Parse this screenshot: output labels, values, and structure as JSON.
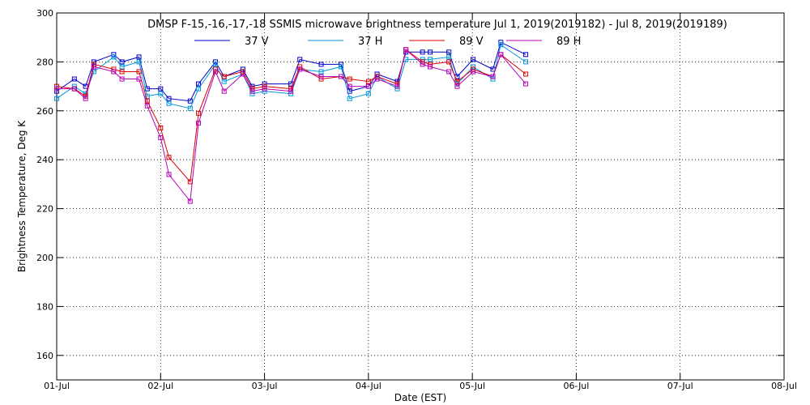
{
  "chart_data": {
    "type": "line",
    "title": "DMSP F-15,-16,-17,-18 SSMIS microwave brightness temperature Jul  1, 2019(2019182) - Jul  8, 2019(2019189)",
    "xlabel": "Date (EST)",
    "ylabel": "Brightness Temperature, Deg K",
    "xlim": [
      "2019-07-01T00:00",
      "2019-07-08T00:00"
    ],
    "ylim": [
      150,
      300
    ],
    "x_ticks": [
      "01-Jul",
      "02-Jul",
      "03-Jul",
      "04-Jul",
      "05-Jul",
      "06-Jul",
      "07-Jul",
      "08-Jul"
    ],
    "y_ticks": [
      160,
      180,
      200,
      220,
      240,
      260,
      280,
      300
    ],
    "grid": true,
    "legend_position": "top-center",
    "x": [
      "2019-07-01T00:00",
      "2019-07-01T04:05",
      "2019-07-01T06:40",
      "2019-07-01T08:35",
      "2019-07-01T13:10",
      "2019-07-01T15:05",
      "2019-07-01T19:00",
      "2019-07-01T20:55",
      "2019-07-02T00:00",
      "2019-07-02T01:55",
      "2019-07-02T06:50",
      "2019-07-02T08:45",
      "2019-07-02T12:40",
      "2019-07-02T14:40",
      "2019-07-02T19:00",
      "2019-07-02T21:10",
      "2019-07-03T00:00",
      "2019-07-03T06:05",
      "2019-07-03T08:10",
      "2019-07-03T13:05",
      "2019-07-03T17:40",
      "2019-07-03T19:40",
      "2019-07-04T00:00",
      "2019-07-04T02:00",
      "2019-07-04T06:40",
      "2019-07-04T08:40",
      "2019-07-04T12:30",
      "2019-07-04T14:15",
      "2019-07-04T18:35",
      "2019-07-04T20:30",
      "2019-07-05T00:10",
      "2019-07-05T04:45",
      "2019-07-05T06:35",
      "2019-07-05T12:20",
      "2019-07-05T17:25"
    ],
    "series": [
      {
        "name": "37 V",
        "color": "#0000c8",
        "values": [
          268,
          273,
          270,
          280,
          283,
          280,
          282,
          269,
          269,
          265,
          264,
          271,
          280,
          274,
          277,
          270,
          271,
          271,
          281,
          279,
          279,
          268,
          270,
          275,
          272,
          284,
          284,
          284,
          284,
          274,
          281,
          277,
          288,
          283,
          null
        ]
      },
      {
        "name": "37 H",
        "color": "#0096dc",
        "values": [
          265,
          270,
          267,
          276,
          282,
          278,
          280,
          266,
          267,
          263,
          261,
          269,
          279,
          272,
          275,
          267,
          268,
          267,
          277,
          276,
          278,
          265,
          267,
          274,
          269,
          281,
          281,
          281,
          282,
          271,
          278,
          273,
          287,
          280,
          null
        ]
      },
      {
        "name": "89 V",
        "color": "#dc0000",
        "values": [
          270,
          269,
          266,
          279,
          277,
          276,
          276,
          264,
          253,
          241,
          231,
          259,
          277,
          274,
          276,
          269,
          270,
          269,
          278,
          273,
          274,
          273,
          272,
          274,
          271,
          285,
          280,
          279,
          280,
          272,
          277,
          274,
          283,
          275,
          null
        ]
      },
      {
        "name": "89 H",
        "color": "#b400b4",
        "values": [
          269,
          269,
          265,
          278,
          276,
          273,
          273,
          262,
          249,
          234,
          223,
          255,
          276,
          268,
          275,
          268,
          269,
          268,
          277,
          274,
          274,
          270,
          270,
          273,
          270,
          285,
          279,
          278,
          276,
          270,
          276,
          274,
          283,
          271,
          null
        ]
      }
    ]
  }
}
